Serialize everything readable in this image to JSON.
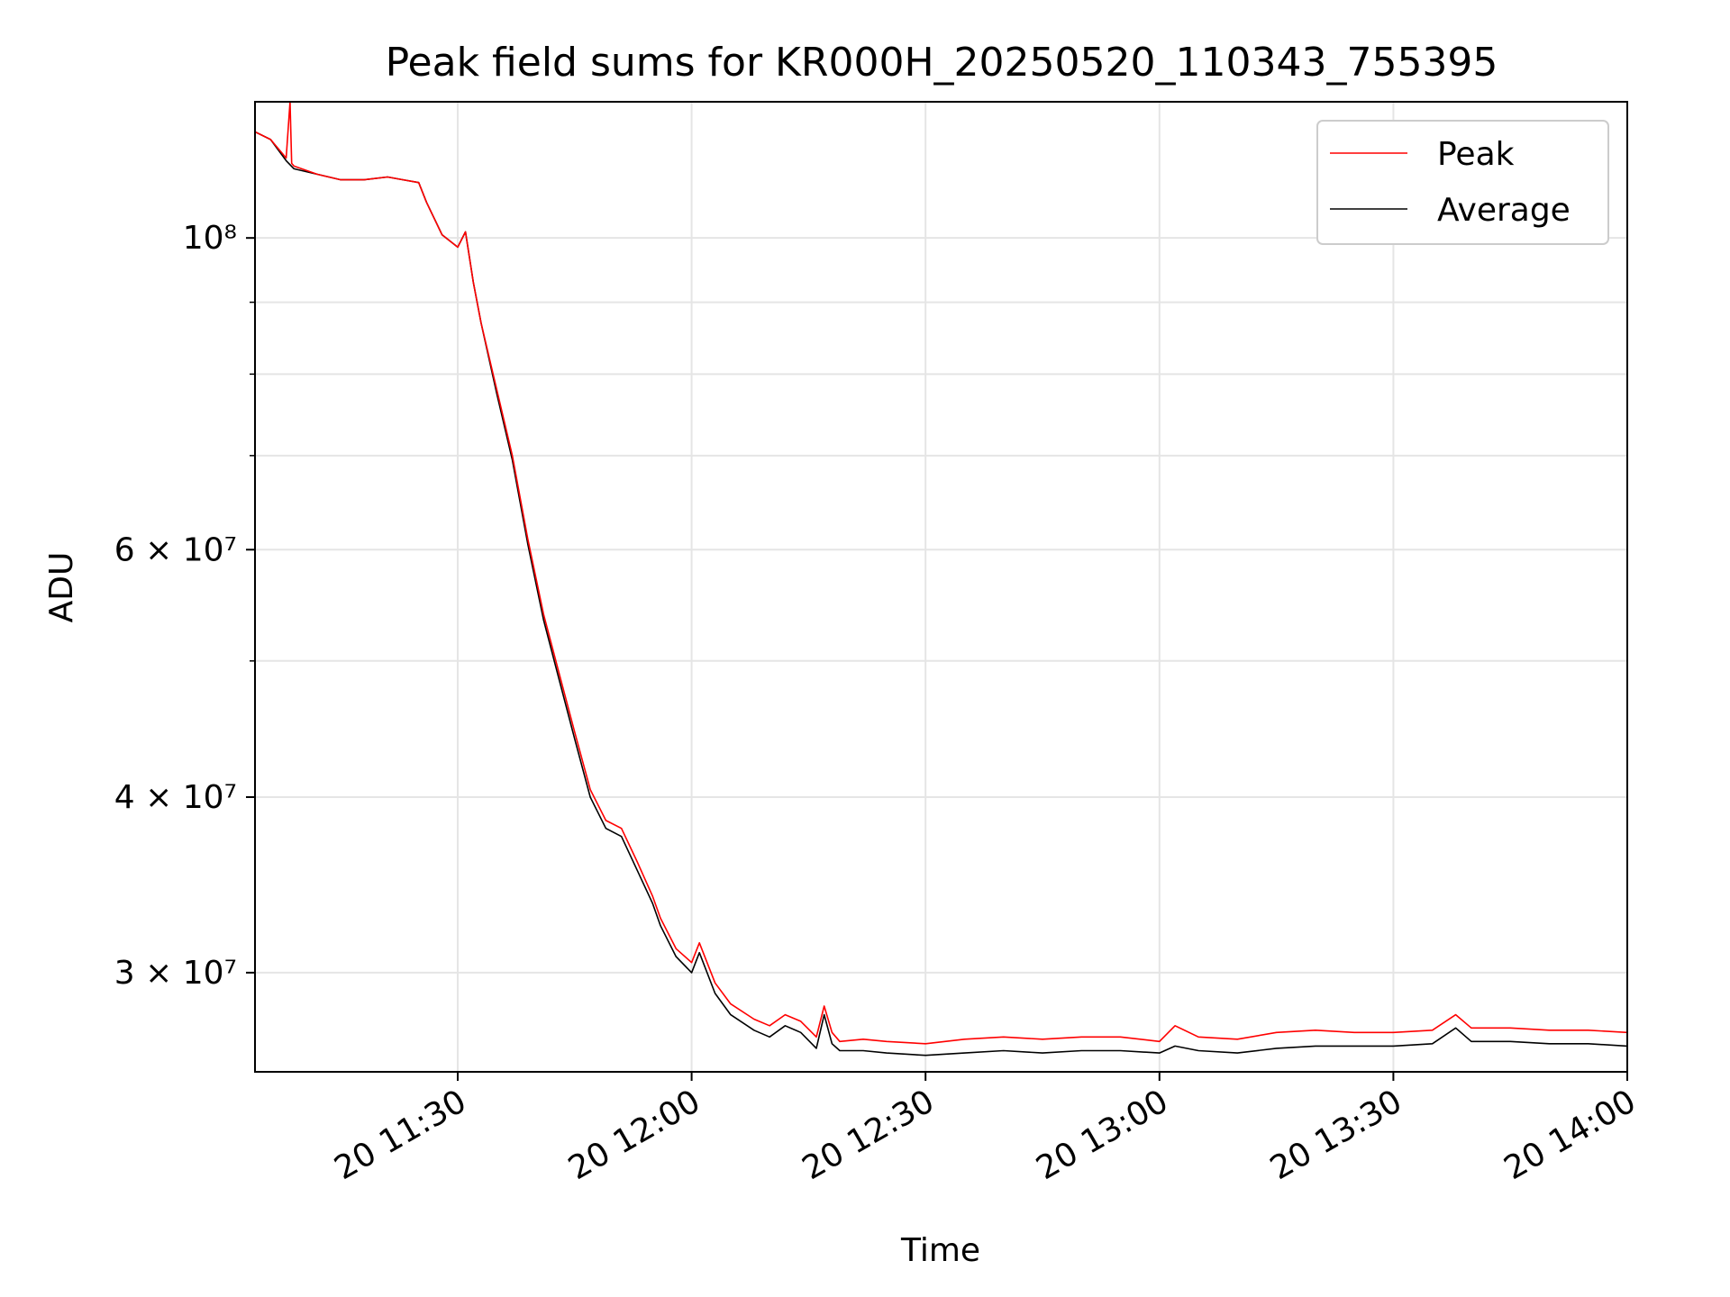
{
  "chart_data": {
    "type": "line",
    "title": "Peak field sums for KR000H_20250520_110343_755395",
    "xlabel": "Time",
    "ylabel": "ADU",
    "x_unit": "time of day",
    "xlim": [
      "11:04",
      "14:00"
    ],
    "ylim": [
      25500000,
      125000000
    ],
    "yscale": "log",
    "grid": true,
    "legend_position": "upper right",
    "x_ticks": [
      "20 11:30",
      "20 12:00",
      "20 12:30",
      "20 13:00",
      "20 13:30",
      "20 14:00"
    ],
    "y_ticks": [
      {
        "value": 100000000,
        "label": "10^8"
      },
      {
        "value": 60000000,
        "label": "6 × 10^7"
      },
      {
        "value": 40000000,
        "label": "4 × 10^7"
      },
      {
        "value": 30000000,
        "label": "3 × 10^7"
      }
    ],
    "series": [
      {
        "name": "Peak",
        "color": "#ff0000",
        "x": [
          "11:04",
          "11:06",
          "11:08",
          "11:08.5",
          "11:08.7",
          "11:09",
          "11:12",
          "11:15",
          "11:18",
          "11:21",
          "11:23",
          "11:25",
          "11:26",
          "11:28",
          "11:30",
          "11:31",
          "11:32",
          "11:33",
          "11:35",
          "11:37",
          "11:39",
          "11:41",
          "11:43",
          "11:45",
          "11:47",
          "11:49",
          "11:51",
          "11:53",
          "11:55",
          "11:56",
          "11:58",
          "12:00",
          "12:01",
          "12:03",
          "12:05",
          "12:08",
          "12:10",
          "12:12",
          "12:14",
          "12:16",
          "12:17",
          "12:18",
          "12:19",
          "12:22",
          "12:25",
          "12:30",
          "12:35",
          "12:40",
          "12:45",
          "12:50",
          "12:55",
          "13:00",
          "13:02",
          "13:05",
          "13:10",
          "13:15",
          "13:20",
          "13:25",
          "13:30",
          "13:35",
          "13:38",
          "13:40",
          "13:45",
          "13:50",
          "13:55",
          "14:00"
        ],
        "y": [
          119000000,
          117500000,
          114000000,
          125000000,
          113000000,
          112500000,
          111000000,
          110000000,
          110000000,
          110500000,
          110000000,
          109500000,
          106000000,
          100500000,
          98500000,
          101000000,
          93000000,
          87000000,
          78000000,
          70000000,
          61000000,
          54000000,
          49000000,
          44500000,
          40500000,
          38500000,
          38000000,
          36000000,
          34000000,
          32800000,
          31200000,
          30500000,
          31500000,
          29500000,
          28500000,
          27800000,
          27500000,
          28000000,
          27700000,
          27000000,
          28400000,
          27200000,
          26800000,
          26900000,
          26800000,
          26700000,
          26900000,
          27000000,
          26900000,
          27000000,
          27000000,
          26800000,
          27500000,
          27000000,
          26900000,
          27200000,
          27300000,
          27200000,
          27200000,
          27300000,
          28000000,
          27400000,
          27400000,
          27300000,
          27300000,
          27200000
        ]
      },
      {
        "name": "Average",
        "color": "#000000",
        "x": [
          "11:04",
          "11:06",
          "11:08",
          "11:09",
          "11:12",
          "11:15",
          "11:18",
          "11:21",
          "11:23",
          "11:25",
          "11:26",
          "11:28",
          "11:30",
          "11:31",
          "11:32",
          "11:33",
          "11:35",
          "11:37",
          "11:39",
          "11:41",
          "11:43",
          "11:45",
          "11:47",
          "11:49",
          "11:51",
          "11:53",
          "11:55",
          "11:56",
          "11:58",
          "12:00",
          "12:01",
          "12:03",
          "12:05",
          "12:08",
          "12:10",
          "12:12",
          "12:14",
          "12:16",
          "12:17",
          "12:18",
          "12:19",
          "12:22",
          "12:25",
          "12:30",
          "12:35",
          "12:40",
          "12:45",
          "12:50",
          "12:55",
          "13:00",
          "13:02",
          "13:05",
          "13:10",
          "13:15",
          "13:20",
          "13:25",
          "13:30",
          "13:35",
          "13:38",
          "13:40",
          "13:45",
          "13:50",
          "13:55",
          "14:00"
        ],
        "y": [
          119000000,
          117500000,
          113500000,
          112000000,
          111000000,
          110000000,
          110000000,
          110500000,
          110000000,
          109500000,
          106000000,
          100500000,
          98500000,
          101000000,
          93000000,
          87000000,
          77500000,
          69500000,
          60500000,
          53500000,
          48500000,
          44000000,
          40000000,
          38000000,
          37500000,
          35500000,
          33600000,
          32400000,
          30800000,
          30000000,
          31000000,
          29000000,
          28000000,
          27300000,
          27000000,
          27500000,
          27200000,
          26500000,
          28000000,
          26700000,
          26400000,
          26400000,
          26300000,
          26200000,
          26300000,
          26400000,
          26300000,
          26400000,
          26400000,
          26300000,
          26600000,
          26400000,
          26300000,
          26500000,
          26600000,
          26600000,
          26600000,
          26700000,
          27400000,
          26800000,
          26800000,
          26700000,
          26700000,
          26600000
        ]
      }
    ]
  }
}
